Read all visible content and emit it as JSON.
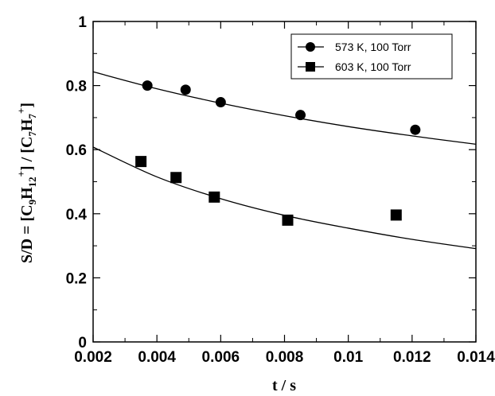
{
  "chart_data": {
    "type": "scatter",
    "xlabel": "t / s",
    "ylabel": "S/D = [C9H12+] / [C7H7+]",
    "ylabel_parts": {
      "pre": "S/D = [C",
      "sub1": "9",
      "mid1": "H",
      "sub2": "12",
      "sup1": "+",
      "mid2": "] / [C",
      "sub3": "7",
      "mid3": "H",
      "sub4": "7",
      "sup2": "+",
      "post": "]"
    },
    "xlim": [
      0.002,
      0.014
    ],
    "ylim": [
      0,
      1
    ],
    "x_ticks": [
      0.002,
      0.004,
      0.006,
      0.008,
      0.01,
      0.012,
      0.014
    ],
    "x_tick_labels": [
      "0.002",
      "0.004",
      "0.006",
      "0.008",
      "0.01",
      "0.012",
      "0.014"
    ],
    "y_ticks": [
      0,
      0.2,
      0.4,
      0.6,
      0.8,
      1
    ],
    "y_tick_labels": [
      "0",
      "0.2",
      "0.4",
      "0.6",
      "0.8",
      "1"
    ],
    "grid": false,
    "legend_position": "top-right",
    "series": [
      {
        "name": "573 K, 100 Torr",
        "marker": "circle",
        "points": [
          [
            0.0037,
            0.8
          ],
          [
            0.0049,
            0.787
          ],
          [
            0.006,
            0.748
          ],
          [
            0.0085,
            0.708
          ],
          [
            0.0121,
            0.662
          ]
        ],
        "fit": [
          [
            0.002,
            0.843
          ],
          [
            0.004,
            0.79
          ],
          [
            0.006,
            0.745
          ],
          [
            0.008,
            0.706
          ],
          [
            0.01,
            0.672
          ],
          [
            0.012,
            0.643
          ],
          [
            0.014,
            0.617
          ]
        ]
      },
      {
        "name": "603 K, 100 Torr",
        "marker": "square",
        "points": [
          [
            0.0035,
            0.563
          ],
          [
            0.0046,
            0.513
          ],
          [
            0.0058,
            0.452
          ],
          [
            0.0081,
            0.38
          ],
          [
            0.0115,
            0.396
          ]
        ],
        "fit": [
          [
            0.002,
            0.608
          ],
          [
            0.004,
            0.515
          ],
          [
            0.006,
            0.447
          ],
          [
            0.008,
            0.395
          ],
          [
            0.01,
            0.355
          ],
          [
            0.012,
            0.32
          ],
          [
            0.014,
            0.291
          ]
        ]
      }
    ]
  }
}
